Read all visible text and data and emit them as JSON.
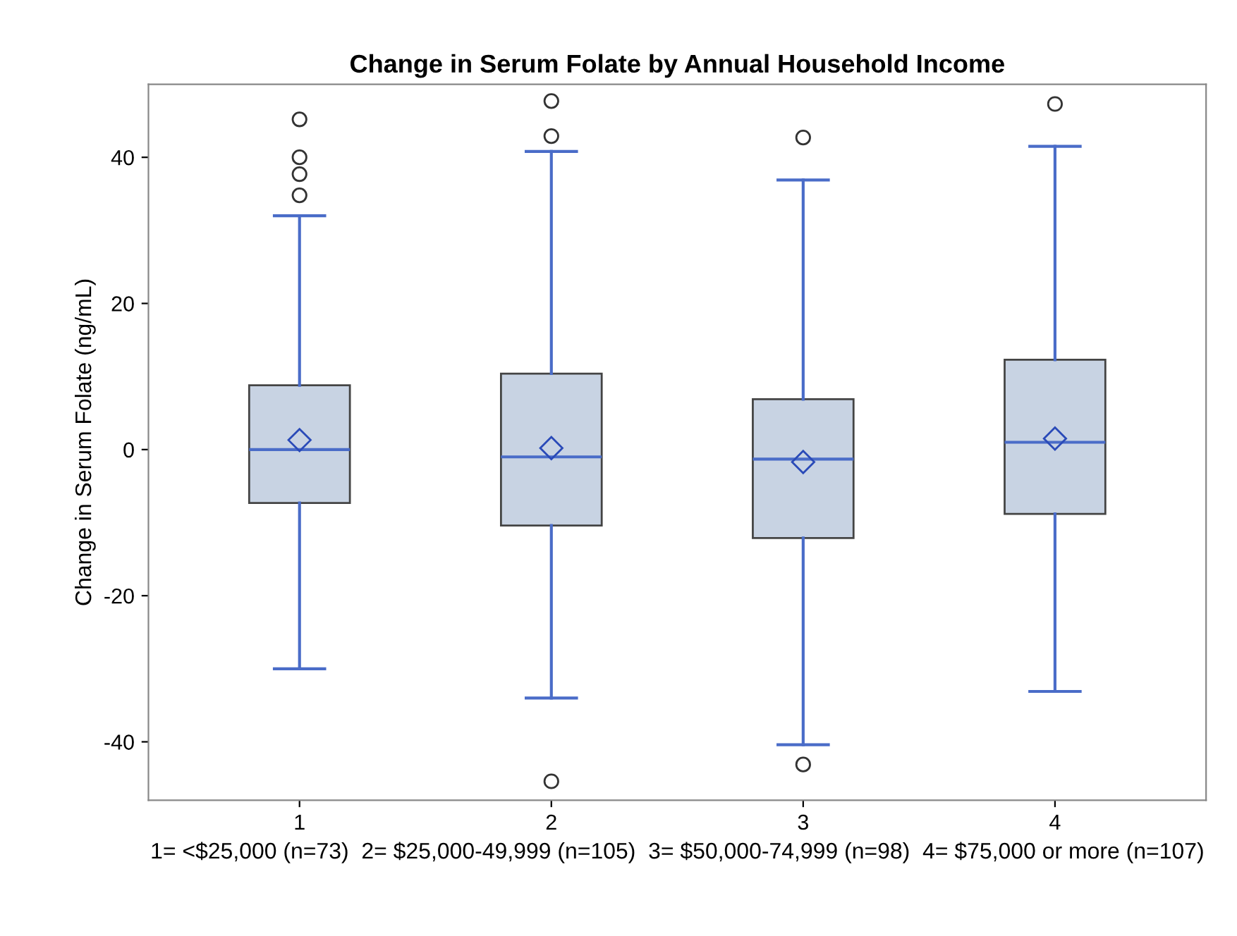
{
  "chart_data": {
    "type": "box",
    "title": "Change in Serum Folate by Annual Household Income",
    "xlabel": "1= <$25,000 (n=73)  2= $25,000-49,999 (n=105)  3= $50,000-74,999 (n=98)  4= $75,000 or more (n=107)",
    "ylabel": "Change in Serum Folate (ng/mL)",
    "categories": [
      "1",
      "2",
      "3",
      "4"
    ],
    "boxes": [
      {
        "low": -30,
        "q1": -7.3,
        "median": 0,
        "q3": 8.8,
        "high": 32,
        "mean": 1.3,
        "outliers": [
          45.2,
          40,
          37.7,
          34.8
        ]
      },
      {
        "low": -34,
        "q1": -10.4,
        "median": -1,
        "q3": 10.4,
        "high": 40.8,
        "mean": 0.2,
        "outliers": [
          47.7,
          42.9,
          -45.4
        ]
      },
      {
        "low": -40.4,
        "q1": -12.1,
        "median": -1.3,
        "q3": 6.9,
        "high": 36.9,
        "mean": -1.7,
        "outliers": [
          42.7,
          -43.1
        ]
      },
      {
        "low": -33.1,
        "q1": -8.8,
        "median": 1,
        "q3": 12.3,
        "high": 41.5,
        "mean": 1.5,
        "outliers": [
          47.3
        ]
      }
    ],
    "color": "#c8d3e3",
    "ylim": [
      -48,
      50
    ],
    "yticks": [
      -40,
      -20,
      0,
      20,
      40
    ],
    "marker": "diamond",
    "grid": false,
    "legend": false
  }
}
